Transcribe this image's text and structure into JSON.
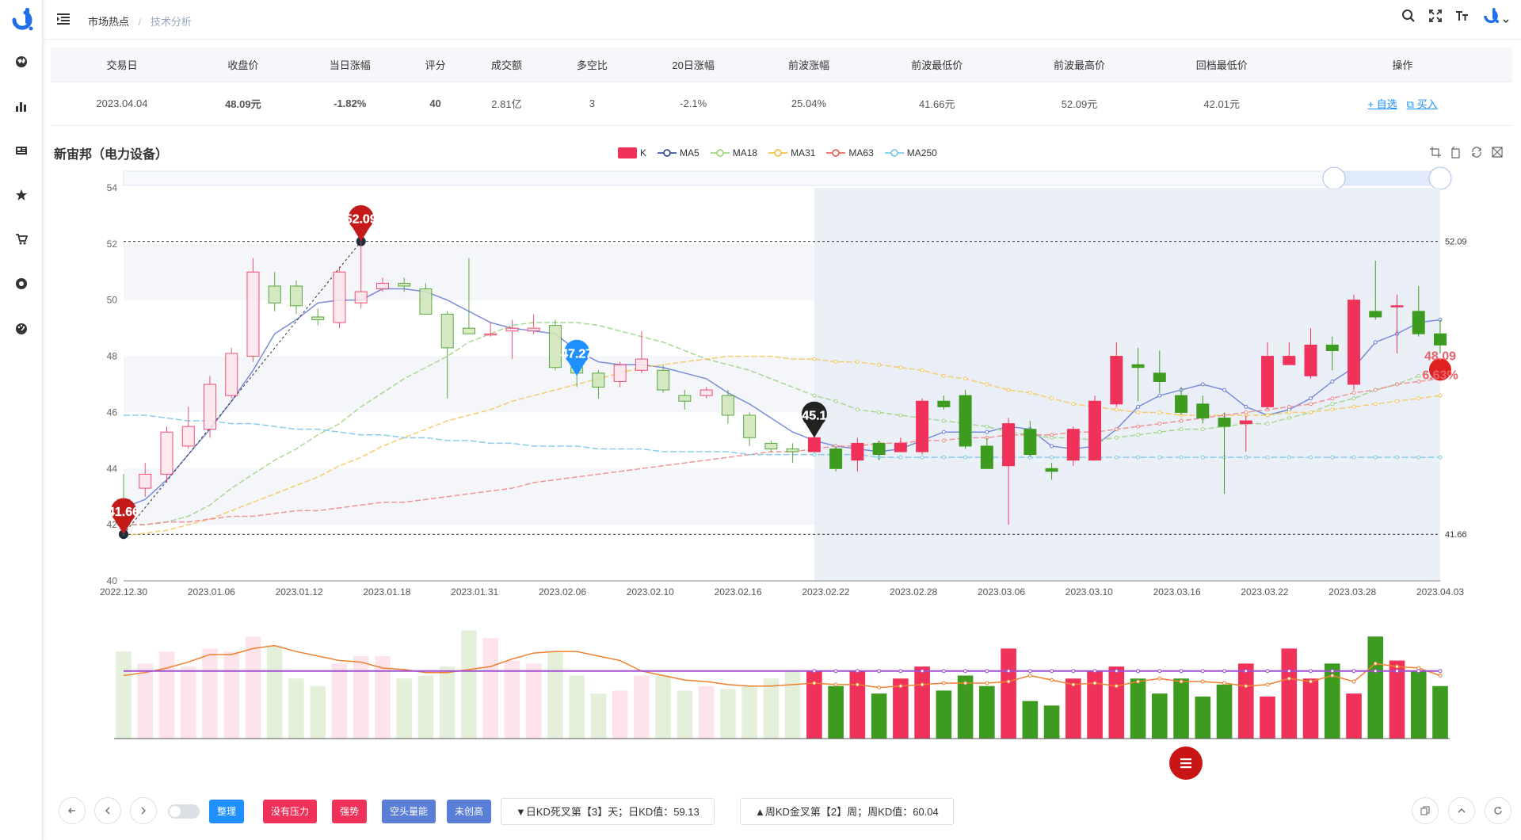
{
  "header": {
    "breadcrumb": [
      "市场热点",
      "技术分析"
    ]
  },
  "table": {
    "headers": [
      "交易日",
      "收盘价",
      "当日涨幅",
      "评分",
      "成交额",
      "多空比",
      "20日涨幅",
      "前波涨幅",
      "前波最低价",
      "前波最高价",
      "回档最低价",
      "操作"
    ],
    "row": {
      "date": "2023.04.04",
      "close": "48.09元",
      "change": "-1.82%",
      "score": "40",
      "amount": "2.81亿",
      "ratio": "3",
      "change20": "-2.1%",
      "wave_change": "25.04%",
      "wave_low": "41.66元",
      "wave_high": "52.09元",
      "pullback_low": "42.01元",
      "op_add": "+ 自选",
      "op_buy": "买入"
    }
  },
  "chart_title": "新宙邦（电力设备）",
  "legend": [
    "K",
    "MA5",
    "MA18",
    "MA31",
    "MA63",
    "MA250"
  ],
  "colors": {
    "up": "#f0325a",
    "down": "#3d9b1f",
    "MA5": "#6b7fd6",
    "MA18": "#9fd48a",
    "MA31": "#f5c660",
    "MA63": "#f08a8a",
    "MA250": "#7ec8e8",
    "vol_ma1": "#f08030",
    "vol_ma2": "#a050d0"
  },
  "chart_data": {
    "type": "candlestick",
    "ylim": [
      40,
      54
    ],
    "yticks": [
      40,
      42,
      44,
      46,
      48,
      50,
      52,
      54
    ],
    "x_tick_labels": [
      "2022.12.30",
      "2023.01.06",
      "2023.01.12",
      "2023.01.18",
      "2023.01.31",
      "2023.02.06",
      "2023.02.10",
      "2023.02.16",
      "2023.02.22",
      "2023.02.28",
      "2023.03.06",
      "2023.03.10",
      "2023.03.16",
      "2023.03.22",
      "2023.03.28",
      "2023.04.03"
    ],
    "ref_lines": [
      52.09,
      41.66
    ],
    "ref_labels": [
      "52.09",
      "41.66"
    ],
    "markers": [
      {
        "label": "52.09",
        "idx": 11,
        "value": 52.09,
        "color": "#c41a1a"
      },
      {
        "label": "41.66",
        "idx": 0,
        "value": 41.66,
        "color": "#c41a1a"
      },
      {
        "label": "47.27",
        "idx": 21,
        "value": 47.3,
        "color": "#1e90ff"
      },
      {
        "label": "45.1",
        "idx": 32,
        "value": 45.1,
        "color": "#222222"
      }
    ],
    "current_label": "48.09",
    "current_pct": "6.63%",
    "highlight_start_idx": 32,
    "candles": [
      [
        42.9,
        42.0,
        43.8,
        41.6
      ],
      [
        43.3,
        43.8,
        44.2,
        43.0
      ],
      [
        43.8,
        45.3,
        45.5,
        43.5
      ],
      [
        44.8,
        45.5,
        46.2,
        44.7
      ],
      [
        45.4,
        47.0,
        47.3,
        45.1
      ],
      [
        46.6,
        48.1,
        48.3,
        46.5
      ],
      [
        48.0,
        51.0,
        51.5,
        47.8
      ],
      [
        50.5,
        49.9,
        51.0,
        49.6
      ],
      [
        50.5,
        49.8,
        50.7,
        49.5
      ],
      [
        49.4,
        49.3,
        49.7,
        49.1
      ],
      [
        49.2,
        51.0,
        51.2,
        49.0
      ],
      [
        49.9,
        50.3,
        52.1,
        49.7
      ],
      [
        50.4,
        50.6,
        50.8,
        50.3
      ],
      [
        50.6,
        50.5,
        50.8,
        50.3
      ],
      [
        50.4,
        49.5,
        50.6,
        49.5
      ],
      [
        49.5,
        48.3,
        49.6,
        46.5
      ],
      [
        49.0,
        48.8,
        51.5,
        48.8
      ],
      [
        48.8,
        48.8,
        49.2,
        48.7
      ],
      [
        48.9,
        49.0,
        49.3,
        47.9
      ],
      [
        48.9,
        49.0,
        49.5,
        48.8
      ],
      [
        49.1,
        47.6,
        49.3,
        47.5
      ],
      [
        47.6,
        47.4,
        47.9,
        46.9
      ],
      [
        47.4,
        46.9,
        47.5,
        46.5
      ],
      [
        47.1,
        47.7,
        47.8,
        46.9
      ],
      [
        47.5,
        47.9,
        48.9,
        47.4
      ],
      [
        47.5,
        46.8,
        47.7,
        46.7
      ],
      [
        46.6,
        46.4,
        46.8,
        46.1
      ],
      [
        46.6,
        46.8,
        46.9,
        46.5
      ],
      [
        46.6,
        45.9,
        46.8,
        45.6
      ],
      [
        45.9,
        45.1,
        46.0,
        44.8
      ],
      [
        44.9,
        44.7,
        45.0,
        44.6
      ],
      [
        44.7,
        44.6,
        44.9,
        44.2
      ],
      [
        44.6,
        45.1,
        45.1,
        44.6
      ],
      [
        44.7,
        44.0,
        44.8,
        43.9
      ],
      [
        44.3,
        44.9,
        45.1,
        43.9
      ],
      [
        44.9,
        44.5,
        45.0,
        44.3
      ],
      [
        44.6,
        44.9,
        45.1,
        44.6
      ],
      [
        44.6,
        46.4,
        46.5,
        44.5
      ],
      [
        46.4,
        46.2,
        46.6,
        46.1
      ],
      [
        46.6,
        44.8,
        46.8,
        44.7
      ],
      [
        44.8,
        44.0,
        45.1,
        44.0
      ],
      [
        44.1,
        45.6,
        45.8,
        42.0
      ],
      [
        45.4,
        44.5,
        45.7,
        44.4
      ],
      [
        44.0,
        43.9,
        44.2,
        43.6
      ],
      [
        44.3,
        45.4,
        45.5,
        44.1
      ],
      [
        44.3,
        46.4,
        46.6,
        44.3
      ],
      [
        46.3,
        48.0,
        48.5,
        46.2
      ],
      [
        47.7,
        47.6,
        48.3,
        46.4
      ],
      [
        47.4,
        47.1,
        48.2,
        46.7
      ],
      [
        46.6,
        46.0,
        46.9,
        45.9
      ],
      [
        46.3,
        45.8,
        46.6,
        45.6
      ],
      [
        45.8,
        45.5,
        46.0,
        43.1
      ],
      [
        45.6,
        45.7,
        45.9,
        44.6
      ],
      [
        46.2,
        48.0,
        48.5,
        46.1
      ],
      [
        47.7,
        48.0,
        48.5,
        47.8
      ],
      [
        47.3,
        48.4,
        49.0,
        47.2
      ],
      [
        48.4,
        48.2,
        48.7,
        47.5
      ],
      [
        47.0,
        50.0,
        50.2,
        46.8
      ],
      [
        49.6,
        49.4,
        51.4,
        49.3
      ],
      [
        49.8,
        49.8,
        50.2,
        48.1
      ],
      [
        49.6,
        48.8,
        50.5,
        48.7
      ],
      [
        48.8,
        48.4,
        49.3,
        48.1
      ]
    ],
    "ma": {
      "MA5": [
        42.6,
        42.9,
        43.6,
        44.5,
        45.4,
        46.4,
        47.5,
        48.8,
        49.3,
        49.9,
        50.0,
        50.0,
        50.4,
        50.4,
        50.3,
        50.0,
        49.6,
        49.2,
        49.0,
        48.9,
        48.8,
        48.2,
        47.8,
        47.7,
        47.7,
        47.6,
        47.4,
        47.2,
        46.7,
        46.3,
        45.8,
        45.3,
        45.0,
        44.8,
        44.7,
        44.6,
        44.7,
        45.0,
        45.3,
        45.3,
        45.3,
        45.5,
        45.4,
        44.8,
        44.7,
        44.8,
        45.4,
        46.2,
        46.6,
        46.8,
        47.0,
        46.8,
        46.2,
        45.9,
        46.1,
        46.5,
        47.1,
        47.6,
        48.5,
        48.8,
        49.2,
        49.3
      ],
      "MA18": [
        42.0,
        42.0,
        42.1,
        42.3,
        42.7,
        43.3,
        43.8,
        44.3,
        44.7,
        45.2,
        45.6,
        46.2,
        46.7,
        47.2,
        47.6,
        48.0,
        48.5,
        48.8,
        49.1,
        49.2,
        49.2,
        49.2,
        49.1,
        48.9,
        48.7,
        48.5,
        48.2,
        47.9,
        47.7,
        47.5,
        47.2,
        46.9,
        46.6,
        46.4,
        46.1,
        46.0,
        45.9,
        45.8,
        45.7,
        45.6,
        45.5,
        45.3,
        45.2,
        45.1,
        45.1,
        45.0,
        45.1,
        45.2,
        45.3,
        45.4,
        45.4,
        45.5,
        45.6,
        45.6,
        45.8,
        46.0,
        46.3,
        46.5,
        46.8,
        47.0,
        47.3,
        47.6
      ],
      "MA31": [
        41.6,
        41.7,
        41.8,
        42.0,
        42.2,
        42.5,
        42.8,
        43.1,
        43.4,
        43.7,
        44.1,
        44.4,
        44.8,
        45.1,
        45.4,
        45.7,
        45.9,
        46.1,
        46.4,
        46.6,
        46.8,
        47.0,
        47.2,
        47.4,
        47.6,
        47.7,
        47.8,
        47.9,
        48.0,
        48.0,
        48.0,
        47.9,
        47.9,
        47.8,
        47.8,
        47.7,
        47.6,
        47.5,
        47.3,
        47.2,
        47.0,
        46.8,
        46.7,
        46.5,
        46.3,
        46.2,
        46.1,
        46.0,
        46.0,
        45.9,
        45.9,
        45.9,
        45.9,
        45.9,
        46.0,
        46.0,
        46.1,
        46.2,
        46.3,
        46.4,
        46.5,
        46.6
      ],
      "MA63": [
        42.0,
        42.0,
        42.1,
        42.1,
        42.2,
        42.3,
        42.3,
        42.4,
        42.5,
        42.5,
        42.6,
        42.7,
        42.8,
        42.8,
        42.9,
        43.0,
        43.1,
        43.2,
        43.3,
        43.5,
        43.6,
        43.7,
        43.8,
        43.9,
        44.0,
        44.1,
        44.2,
        44.3,
        44.4,
        44.5,
        44.6,
        44.6,
        44.7,
        44.8,
        44.8,
        44.9,
        44.9,
        45.0,
        45.0,
        45.1,
        45.1,
        45.2,
        45.2,
        45.2,
        45.3,
        45.3,
        45.4,
        45.5,
        45.6,
        45.7,
        45.8,
        45.9,
        46.0,
        46.1,
        46.2,
        46.3,
        46.5,
        46.7,
        46.8,
        47.0,
        47.1,
        47.2
      ],
      "MA250": [
        45.9,
        45.9,
        45.8,
        45.7,
        45.7,
        45.6,
        45.6,
        45.5,
        45.4,
        45.4,
        45.3,
        45.2,
        45.2,
        45.1,
        45.1,
        45.0,
        45.0,
        44.9,
        44.9,
        44.8,
        44.8,
        44.8,
        44.7,
        44.7,
        44.7,
        44.6,
        44.6,
        44.6,
        44.6,
        44.5,
        44.5,
        44.5,
        44.5,
        44.5,
        44.5,
        44.4,
        44.4,
        44.4,
        44.4,
        44.4,
        44.4,
        44.4,
        44.4,
        44.4,
        44.4,
        44.4,
        44.4,
        44.4,
        44.4,
        44.4,
        44.4,
        44.4,
        44.4,
        44.4,
        44.4,
        44.4,
        44.4,
        44.4,
        44.4,
        44.4,
        44.4,
        44.4
      ]
    },
    "volume": [
      58,
      50,
      58,
      48,
      60,
      58,
      68,
      62,
      40,
      35,
      50,
      55,
      55,
      40,
      42,
      48,
      72,
      67,
      52,
      50,
      58,
      42,
      30,
      32,
      42,
      42,
      32,
      35,
      33,
      35,
      40,
      45,
      45,
      35,
      45,
      30,
      40,
      48,
      32,
      42,
      35,
      60,
      25,
      22,
      40,
      45,
      48,
      40,
      30,
      40,
      28,
      36,
      50,
      28,
      60,
      40,
      50,
      30,
      68,
      52,
      45,
      35
    ],
    "volume_ma1": [
      42,
      44,
      47,
      51,
      56,
      56,
      60,
      62,
      58,
      55,
      52,
      51,
      47,
      46,
      44,
      44,
      46,
      48,
      53,
      57,
      58,
      58,
      55,
      52,
      45,
      42,
      39,
      38,
      36,
      35,
      35,
      36,
      37,
      36,
      36,
      34,
      35,
      36,
      37,
      37,
      37,
      38,
      42,
      39,
      36,
      37,
      35,
      38,
      40,
      38,
      38,
      37,
      35,
      36,
      40,
      38,
      42,
      38,
      50,
      48,
      47,
      42
    ],
    "volume_ma2": [
      45,
      45,
      45,
      45,
      45,
      45,
      45,
      45,
      45,
      45,
      45,
      45,
      45,
      45,
      45,
      45,
      45,
      45,
      45,
      45,
      45,
      45,
      45,
      45,
      45,
      45,
      45,
      45,
      45,
      45,
      45,
      45,
      45,
      45,
      45,
      45,
      45,
      45,
      45,
      45,
      45,
      45,
      45,
      45,
      45,
      45,
      45,
      45,
      45,
      45,
      45,
      45,
      45,
      45,
      45,
      45,
      45,
      45,
      45,
      45,
      45,
      45
    ]
  },
  "bottom": {
    "tags": [
      "整理",
      "没有压力",
      "强势",
      "空头量能",
      "未创高"
    ],
    "kd_day": "▼日KD死叉第【3】天；日KD值：59.13",
    "kd_week": "▲周KD金叉第【2】周；周KD值：60.04"
  }
}
